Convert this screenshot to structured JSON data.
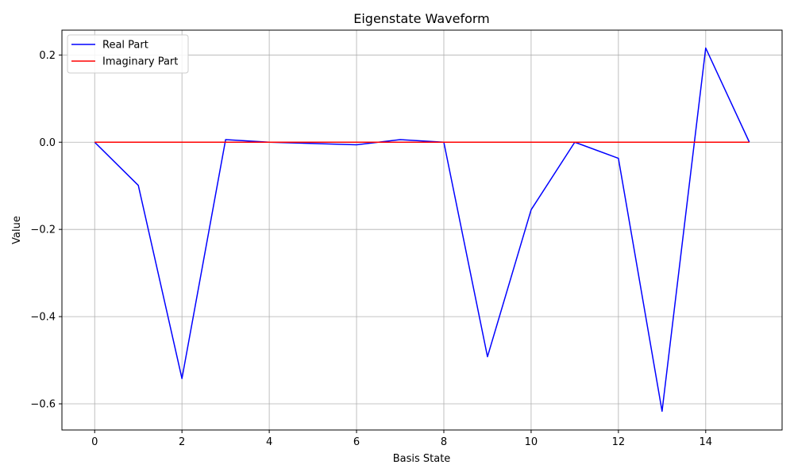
{
  "chart_data": {
    "type": "line",
    "title": "Eigenstate Waveform",
    "xlabel": "Basis State",
    "ylabel": "Value",
    "xlim": [
      -0.75,
      15.75
    ],
    "ylim": [
      -0.66,
      0.257
    ],
    "xticks": [
      0,
      2,
      4,
      6,
      8,
      10,
      12,
      14
    ],
    "xtick_labels": [
      "0",
      "2",
      "4",
      "6",
      "8",
      "10",
      "12",
      "14"
    ],
    "yticks": [
      -0.6,
      -0.4,
      -0.2,
      0.0,
      0.2
    ],
    "ytick_labels": [
      "−0.6",
      "−0.4",
      "−0.2",
      "0.0",
      "0.2"
    ],
    "grid": true,
    "legend_position": "top-left",
    "x": [
      0,
      1,
      2,
      3,
      4,
      5,
      6,
      7,
      8,
      9,
      10,
      11,
      12,
      13,
      14,
      15
    ],
    "series": [
      {
        "name": "Real Part",
        "color": "#0000ff",
        "values": [
          0.0,
          -0.099,
          -0.542,
          0.006,
          0.0,
          -0.003,
          -0.006,
          0.006,
          0.0,
          -0.492,
          -0.155,
          0.0,
          -0.037,
          -0.617,
          0.216,
          0.0
        ]
      },
      {
        "name": "Imaginary Part",
        "color": "#ff0000",
        "values": [
          0,
          0,
          0,
          0,
          0,
          0,
          0,
          0,
          0,
          0,
          0,
          0,
          0,
          0,
          0,
          0
        ]
      }
    ]
  }
}
